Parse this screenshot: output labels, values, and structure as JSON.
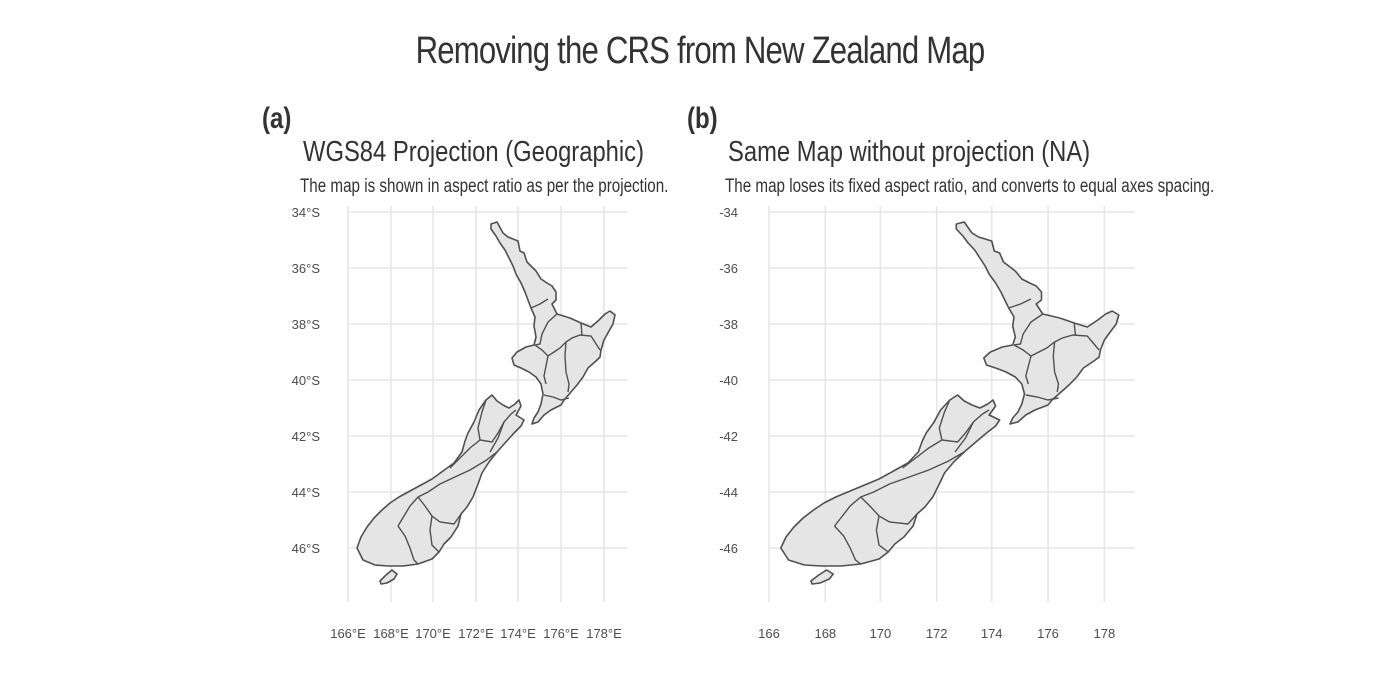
{
  "title": "Removing the CRS from New Zealand Map",
  "panels": [
    {
      "tag": "(a)",
      "title": "WGS84 Projection (Geographic)",
      "subtitle": "The map is shown in aspect ratio as per the projection.",
      "x_ticks": [
        "166°E",
        "168°E",
        "170°E",
        "172°E",
        "174°E",
        "176°E",
        "178°E"
      ],
      "y_ticks": [
        "34°S",
        "36°S",
        "38°S",
        "40°S",
        "42°S",
        "44°S",
        "46°S"
      ]
    },
    {
      "tag": "(b)",
      "title": "Same Map without projection (NA)",
      "subtitle": "The map loses its fixed aspect ratio, and converts to equal axes spacing.",
      "x_ticks": [
        "166",
        "168",
        "170",
        "172",
        "174",
        "176",
        "178"
      ],
      "y_ticks": [
        "-34",
        "-36",
        "-38",
        "-40",
        "-42",
        "-44",
        "-46"
      ]
    }
  ],
  "map": {
    "lon_values": [
      166,
      168,
      170,
      172,
      174,
      176,
      178
    ],
    "lat_values": [
      -34,
      -36,
      -38,
      -40,
      -42,
      -44,
      -46
    ],
    "lon_range": [
      165.5,
      179.0
    ],
    "lat_range": [
      -34.0,
      -47.5
    ],
    "fill_color": "#e5e5e5",
    "stroke_color": "#505050",
    "grid_color": "#e6e6e6"
  }
}
